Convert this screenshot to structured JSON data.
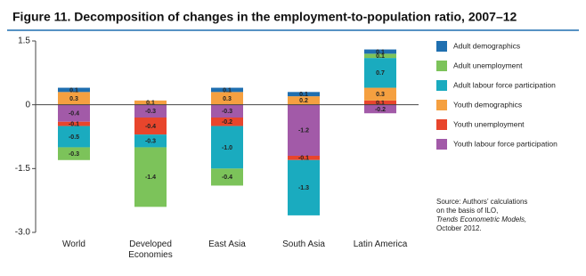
{
  "chart_data": {
    "type": "stacked-bar",
    "title": "Figure 11.  Decomposition of changes in the employment-to-population ratio, 2007–12",
    "categories": [
      "World",
      "Developed Economies",
      "East Asia",
      "South Asia",
      "Latin America"
    ],
    "series": [
      {
        "name": "Adult demographics",
        "color": "#1f6fb0",
        "values": [
          0.1,
          null,
          0.1,
          0.1,
          0.1
        ],
        "value_labels": [
          "0.1",
          null,
          "0.1",
          "0.1",
          "0.1"
        ]
      },
      {
        "name": "Adult unemployment",
        "color": "#7cc35a",
        "values": [
          -0.3,
          -1.4,
          -0.4,
          null,
          0.1
        ],
        "value_labels": [
          "-0.3",
          "-1.4",
          "-0.4",
          null,
          "0.1"
        ]
      },
      {
        "name": "Adult labour force participation",
        "color": "#1aabbf",
        "values": [
          -0.5,
          -0.3,
          -1.0,
          -1.3,
          0.7
        ],
        "value_labels": [
          "-0.5",
          "-0.3",
          "-1.0",
          "-1.3",
          "0.7"
        ]
      },
      {
        "name": "Youth demographics",
        "color": "#f5a040",
        "values": [
          0.3,
          0.1,
          0.3,
          0.2,
          0.3
        ],
        "value_labels": [
          "0.3",
          "0.1",
          "0.3",
          "0.2",
          "0.3"
        ]
      },
      {
        "name": "Youth unemployment",
        "color": "#e8452c",
        "values": [
          -0.1,
          -0.4,
          -0.2,
          -0.1,
          0.1
        ],
        "value_labels": [
          "-0.1",
          "-0.4",
          "-0.2",
          "-0.1",
          "0.1"
        ]
      },
      {
        "name": "Youth labour force participation",
        "color": "#a25aa8",
        "values": [
          -0.4,
          -0.3,
          -0.3,
          -1.2,
          -0.2
        ],
        "value_labels": [
          "-0.4",
          "-0.3",
          "-0.3",
          "-1.2",
          "-0.2"
        ]
      }
    ],
    "ylim": [
      -3,
      1.5
    ],
    "yticks": [
      1.5,
      0,
      -1.5,
      {
        "value": -3,
        "label": "-3.0"
      }
    ],
    "source": [
      "Source: Authors’ calculations",
      "on the basis of ILO,",
      "Trends Econometric Models,",
      "October 2012."
    ]
  }
}
